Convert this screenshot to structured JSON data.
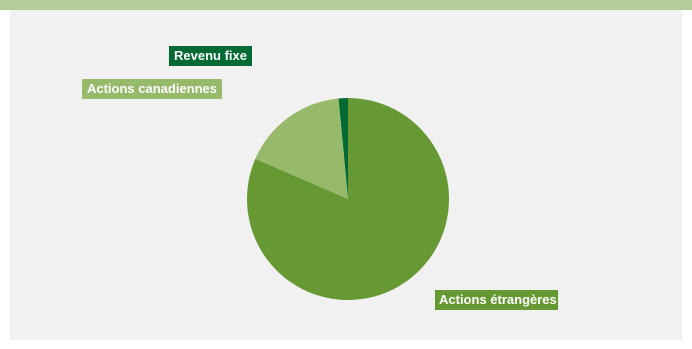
{
  "chart_data": {
    "type": "pie",
    "title": "",
    "series": [
      {
        "name": "Revenu fixe",
        "value": 1.5,
        "color": "#006a34"
      },
      {
        "name": "Actions canadiennes",
        "value": 17.0,
        "color": "#96b96a"
      },
      {
        "name": "Actions étrangères",
        "value": 81.5,
        "color": "#669933"
      }
    ],
    "legend": "labels-outside",
    "start_angle_deg": -90,
    "direction": "counter-clockwise"
  },
  "colors": {
    "top_band": "#b4cc97",
    "panel": "#f1f1f1"
  }
}
